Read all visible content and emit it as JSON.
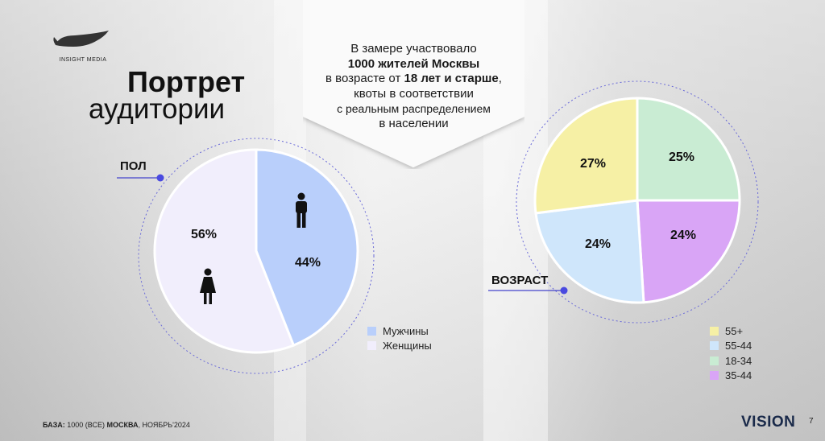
{
  "logo": {
    "text": "INSIGHT MEDIA"
  },
  "title": {
    "line1": "Портрет",
    "line2": "аудитории"
  },
  "banner": {
    "line1": "В замере участвовало",
    "line2": "1000 жителей Москвы",
    "line3_pre": "в возрасте от ",
    "line3_bold": "18 лет и старше",
    "line3_post": ",",
    "line4": "квоты в соответствии",
    "line5": "с реальным распределением",
    "line6": "в населении"
  },
  "labels": {
    "gender": "ПОЛ",
    "age": "ВОЗРАСТ"
  },
  "footer": {
    "base_label": "БАЗА:",
    "base_value": " 1000 (ВСЕ) ",
    "city": "МОСКВА",
    "date": ", НОЯБРЬ'2024"
  },
  "brand": "VISION",
  "page_number": "7",
  "icons": {
    "male": "male-figure-icon",
    "female": "female-figure-icon"
  },
  "chart_data": [
    {
      "type": "pie",
      "categories": [
        "Мужчины",
        "Женщины"
      ],
      "values": [
        44,
        56
      ],
      "labels": [
        "44%",
        "56%"
      ],
      "colors": [
        "#b9cffb",
        "#f1eefc"
      ],
      "legend_position": "bottom-right"
    },
    {
      "type": "pie",
      "categories": [
        "55+",
        "55-44",
        "18-34",
        "35-44"
      ],
      "values": [
        27,
        24,
        25,
        24
      ],
      "labels": [
        "27%",
        "24%",
        "25%",
        "24%"
      ],
      "colors": [
        "#f6f0a5",
        "#cfe6fb",
        "#c9ecd3",
        "#d9a5f6"
      ],
      "legend_position": "bottom-right"
    }
  ]
}
